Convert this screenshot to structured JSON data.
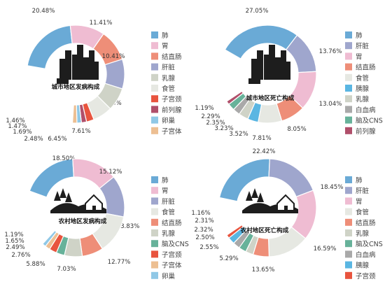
{
  "chart_data": [
    {
      "type": "donut",
      "title": "城市地区发病构成",
      "series": [
        {
          "label": "肺",
          "value": 20.48,
          "color": "#6aaad6"
        },
        {
          "label": "胃",
          "value": 11.41,
          "color": "#efbcd2"
        },
        {
          "label": "结直肠",
          "value": 10.41,
          "color": "#ee8e78"
        },
        {
          "label": "肝脏",
          "value": 9.78,
          "color": "#9fa6cd"
        },
        {
          "label": "乳腺",
          "value": 7.61,
          "color": "#cfd3c7"
        },
        {
          "label": "食管",
          "value": 6.45,
          "color": "#e6e8e2"
        },
        {
          "label": "子宫颈",
          "value": 2.48,
          "color": "#e8543e"
        },
        {
          "label": "前列腺",
          "value": 1.69,
          "color": "#b04f6a"
        },
        {
          "label": "卵巢",
          "value": 1.47,
          "color": "#90c8e6"
        },
        {
          "label": "子宫体",
          "value": 1.46,
          "color": "#edbf92"
        }
      ]
    },
    {
      "type": "donut",
      "title": "城市地区死亡构成",
      "series": [
        {
          "label": "肺",
          "value": 27.05,
          "color": "#6aaad6"
        },
        {
          "label": "肝脏",
          "value": 13.76,
          "color": "#9fa6cd"
        },
        {
          "label": "胃",
          "value": 13.04,
          "color": "#efbcd2"
        },
        {
          "label": "结直肠",
          "value": 8.05,
          "color": "#ee8e78"
        },
        {
          "label": "食管",
          "value": 7.81,
          "color": "#e6e8e2"
        },
        {
          "label": "胰腺",
          "value": 3.52,
          "color": "#5ab6e2"
        },
        {
          "label": "乳腺",
          "value": 3.23,
          "color": "#cfd3c7"
        },
        {
          "label": "白血病",
          "value": 2.35,
          "color": "#a9a9a9"
        },
        {
          "label": "脑及CNS",
          "value": 2.29,
          "color": "#67b29a"
        },
        {
          "label": "前列腺",
          "value": 1.19,
          "color": "#b04f6a"
        }
      ]
    },
    {
      "type": "donut",
      "title": "农村地区发病构成",
      "series": [
        {
          "label": "肺",
          "value": 18.5,
          "color": "#6aaad6"
        },
        {
          "label": "胃",
          "value": 15.12,
          "color": "#efbcd2"
        },
        {
          "label": "肝脏",
          "value": 13.83,
          "color": "#9fa6cd"
        },
        {
          "label": "食管",
          "value": 12.77,
          "color": "#e6e8e2"
        },
        {
          "label": "结直肠",
          "value": 7.03,
          "color": "#ee8e78"
        },
        {
          "label": "乳腺",
          "value": 5.88,
          "color": "#cfd3c7"
        },
        {
          "label": "脑及CNS",
          "value": 2.76,
          "color": "#67b29a"
        },
        {
          "label": "子宫颈",
          "value": 2.49,
          "color": "#e8543e"
        },
        {
          "label": "子宫体",
          "value": 1.65,
          "color": "#edbf92"
        },
        {
          "label": "卵巢",
          "value": 1.19,
          "color": "#90c8e6"
        }
      ]
    },
    {
      "type": "donut",
      "title": "农村地区死亡构成",
      "series": [
        {
          "label": "肺",
          "value": 22.42,
          "color": "#6aaad6"
        },
        {
          "label": "肝脏",
          "value": 18.45,
          "color": "#9fa6cd"
        },
        {
          "label": "胃",
          "value": 16.59,
          "color": "#efbcd2"
        },
        {
          "label": "食管",
          "value": 13.65,
          "color": "#e6e8e2"
        },
        {
          "label": "结直肠",
          "value": 5.29,
          "color": "#ee8e78"
        },
        {
          "label": "乳腺",
          "value": 2.55,
          "color": "#cfd3c7"
        },
        {
          "label": "脑及CNS",
          "value": 2.5,
          "color": "#67b29a"
        },
        {
          "label": "白血病",
          "value": 2.32,
          "color": "#a9a9a9"
        },
        {
          "label": "胰腺",
          "value": 2.31,
          "color": "#5ab6e2"
        },
        {
          "label": "子宫颈",
          "value": 1.16,
          "color": "#e8543e"
        }
      ]
    }
  ]
}
